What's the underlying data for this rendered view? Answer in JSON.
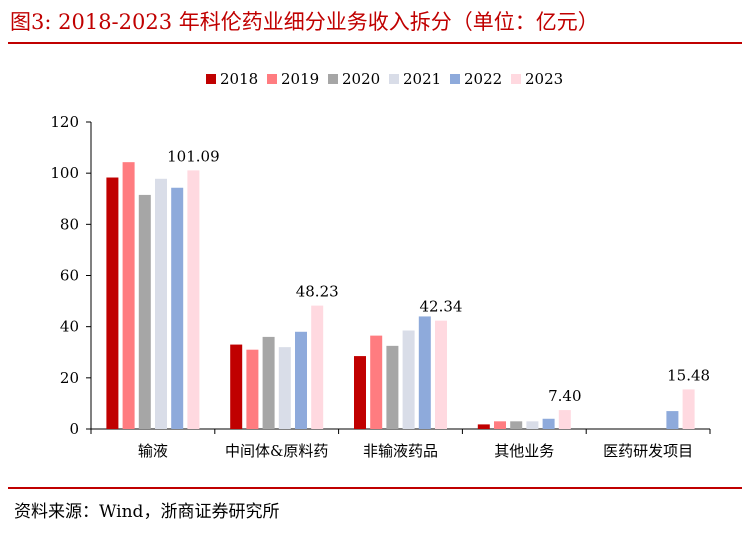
{
  "header": {
    "title": "图3:  2018-2023 年科伦药业细分业务收入拆分（单位：亿元）"
  },
  "footer": {
    "source": "资料来源：Wind，浙商证券研究所"
  },
  "chart_data": {
    "type": "bar",
    "categories": [
      "输液",
      "中间体&原料药",
      "非输液药品",
      "其他业务",
      "医药研发项目"
    ],
    "series": [
      {
        "name": "2018",
        "color": "#c00000",
        "values": [
          98.3,
          33.0,
          28.5,
          1.8,
          null
        ]
      },
      {
        "name": "2019",
        "color": "#ff7c80",
        "values": [
          104.3,
          31.0,
          36.5,
          3.0,
          null
        ]
      },
      {
        "name": "2020",
        "color": "#a6a6a6",
        "values": [
          91.5,
          36.0,
          32.5,
          3.0,
          null
        ]
      },
      {
        "name": "2021",
        "color": "#d9dde8",
        "values": [
          97.8,
          32.0,
          38.5,
          3.0,
          null
        ]
      },
      {
        "name": "2022",
        "color": "#8eaadb",
        "values": [
          94.3,
          38.0,
          44.0,
          4.0,
          7.0
        ]
      },
      {
        "name": "2023",
        "color": "#ffd9e0",
        "values": [
          101.09,
          48.23,
          42.34,
          7.4,
          15.48
        ]
      }
    ],
    "data_labels": [
      "101.09",
      "48.23",
      "42.34",
      "7.40",
      "15.48"
    ],
    "y_ticks": [
      "0",
      "20",
      "40",
      "60",
      "80",
      "100",
      "120"
    ],
    "ylim": [
      0,
      120
    ],
    "legend_position": "top-center",
    "grid": false
  }
}
